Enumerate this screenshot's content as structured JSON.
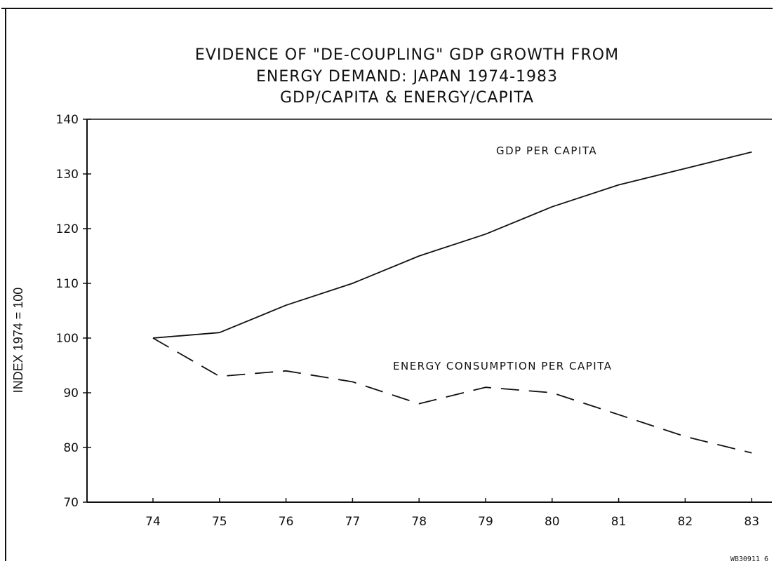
{
  "chart_data": {
    "type": "line",
    "title": "EVIDENCE OF \"DE-COUPLING\" GDP GROWTH FROM",
    "subtitle": "ENERGY DEMAND: JAPAN 1974-1983",
    "subtitle2": "GDP/CAPITA & ENERGY/CAPITA",
    "xlabel": "",
    "ylabel": "INDEX 1974 = 100",
    "x": [
      74,
      75,
      76,
      77,
      78,
      79,
      80,
      81,
      82,
      83
    ],
    "x_tick_labels": [
      "74",
      "75",
      "76",
      "77",
      "78",
      "79",
      "80",
      "81",
      "82",
      "83"
    ],
    "y_ticks": [
      70,
      80,
      90,
      100,
      110,
      120,
      130,
      140
    ],
    "y_tick_labels": [
      "70",
      "80",
      "90",
      "100",
      "110",
      "120",
      "130",
      "140"
    ],
    "ylim": [
      70,
      140
    ],
    "grid": false,
    "series": [
      {
        "name": "GDP PER CAPITA",
        "style": "solid",
        "values": [
          100,
          101,
          106,
          110,
          115,
          119,
          124,
          128,
          131,
          134
        ]
      },
      {
        "name": "ENERGY CONSUMPTION PER CAPITA",
        "style": "dashed",
        "values": [
          100,
          93,
          94,
          92,
          88,
          91,
          90,
          86,
          82,
          79
        ]
      }
    ],
    "annotations": [
      "GDP PER CAPITA",
      "ENERGY CONSUMPTION PER CAPITA"
    ],
    "line_color": "#111111"
  },
  "footnote": "WB30911 6"
}
